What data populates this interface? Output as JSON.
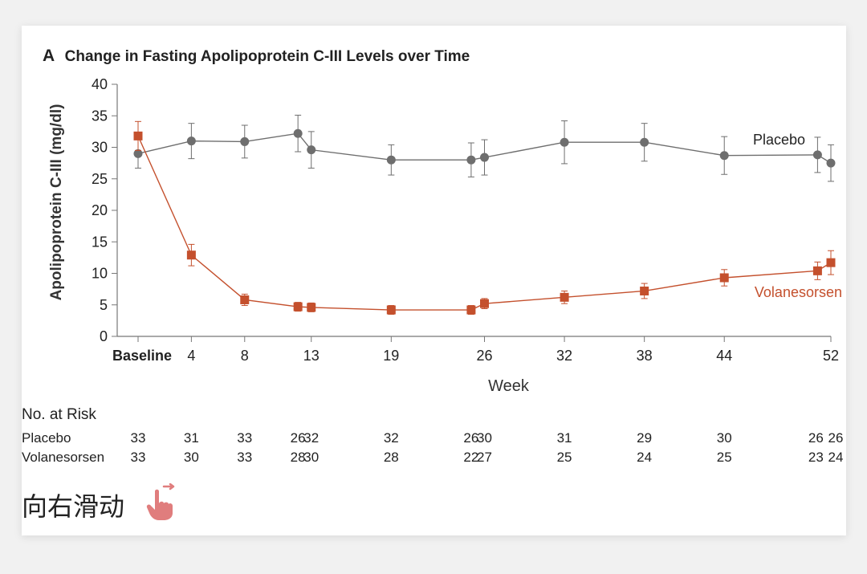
{
  "panel_label": "A",
  "chart_data": {
    "type": "line",
    "title": "Change in Fasting Apolipoprotein C-III Levels over Time",
    "xlabel": "Week",
    "ylabel": "Apolipoprotein C-III (mg/dl)",
    "ylim": [
      0,
      40
    ],
    "yticks": [
      0,
      5,
      10,
      15,
      20,
      25,
      30,
      35,
      40
    ],
    "xticks": [
      {
        "x": 0,
        "label": "Baseline"
      },
      {
        "x": 4,
        "label": "4"
      },
      {
        "x": 8,
        "label": "8"
      },
      {
        "x": 13,
        "label": "13"
      },
      {
        "x": 19,
        "label": "19"
      },
      {
        "x": 26,
        "label": "26"
      },
      {
        "x": 32,
        "label": "32"
      },
      {
        "x": 38,
        "label": "38"
      },
      {
        "x": 44,
        "label": "44"
      },
      {
        "x": 52,
        "label": "52"
      }
    ],
    "grid": false,
    "series": [
      {
        "name": "Placebo",
        "color": "#6e6e6e",
        "marker": "circle",
        "x": [
          0,
          4,
          8,
          12,
          13,
          19,
          25,
          26,
          32,
          38,
          44,
          51,
          52
        ],
        "y": [
          29.0,
          31.0,
          30.9,
          32.2,
          29.6,
          28.0,
          28.0,
          28.4,
          30.8,
          30.8,
          28.7,
          28.8,
          27.5
        ],
        "err": [
          2.3,
          2.8,
          2.6,
          2.9,
          2.9,
          2.4,
          2.7,
          2.8,
          3.4,
          3.0,
          3.0,
          2.8,
          2.9
        ]
      },
      {
        "name": "Volanesorsen",
        "color": "#c4502d",
        "marker": "square",
        "x": [
          0,
          4,
          8,
          12,
          13,
          19,
          25,
          26,
          32,
          38,
          44,
          51,
          52
        ],
        "y": [
          31.8,
          12.9,
          5.8,
          4.7,
          4.6,
          4.2,
          4.2,
          5.2,
          6.2,
          7.2,
          9.3,
          10.4,
          11.7
        ],
        "err": [
          2.3,
          1.7,
          0.9,
          0.7,
          0.7,
          0.7,
          0.7,
          0.8,
          1.0,
          1.2,
          1.3,
          1.4,
          1.9
        ]
      }
    ]
  },
  "risk_table": {
    "heading": "No. at Risk",
    "rows": [
      {
        "name": "Placebo",
        "values": [
          "33",
          "31",
          "33",
          "26",
          "32",
          "32",
          "26",
          "30",
          "31",
          "29",
          "30",
          "26",
          "26"
        ]
      },
      {
        "name": "Volanesorsen",
        "values": [
          "33",
          "30",
          "33",
          "28",
          "30",
          "28",
          "22",
          "27",
          "25",
          "24",
          "25",
          "23",
          "24"
        ]
      }
    ]
  },
  "swipe_text": "向右滑动",
  "swipe_icon": "swipe-hand-icon",
  "colors": {
    "placebo": "#6e6e6e",
    "volanesorsen": "#c4502d",
    "hand": "#e07d7d"
  }
}
